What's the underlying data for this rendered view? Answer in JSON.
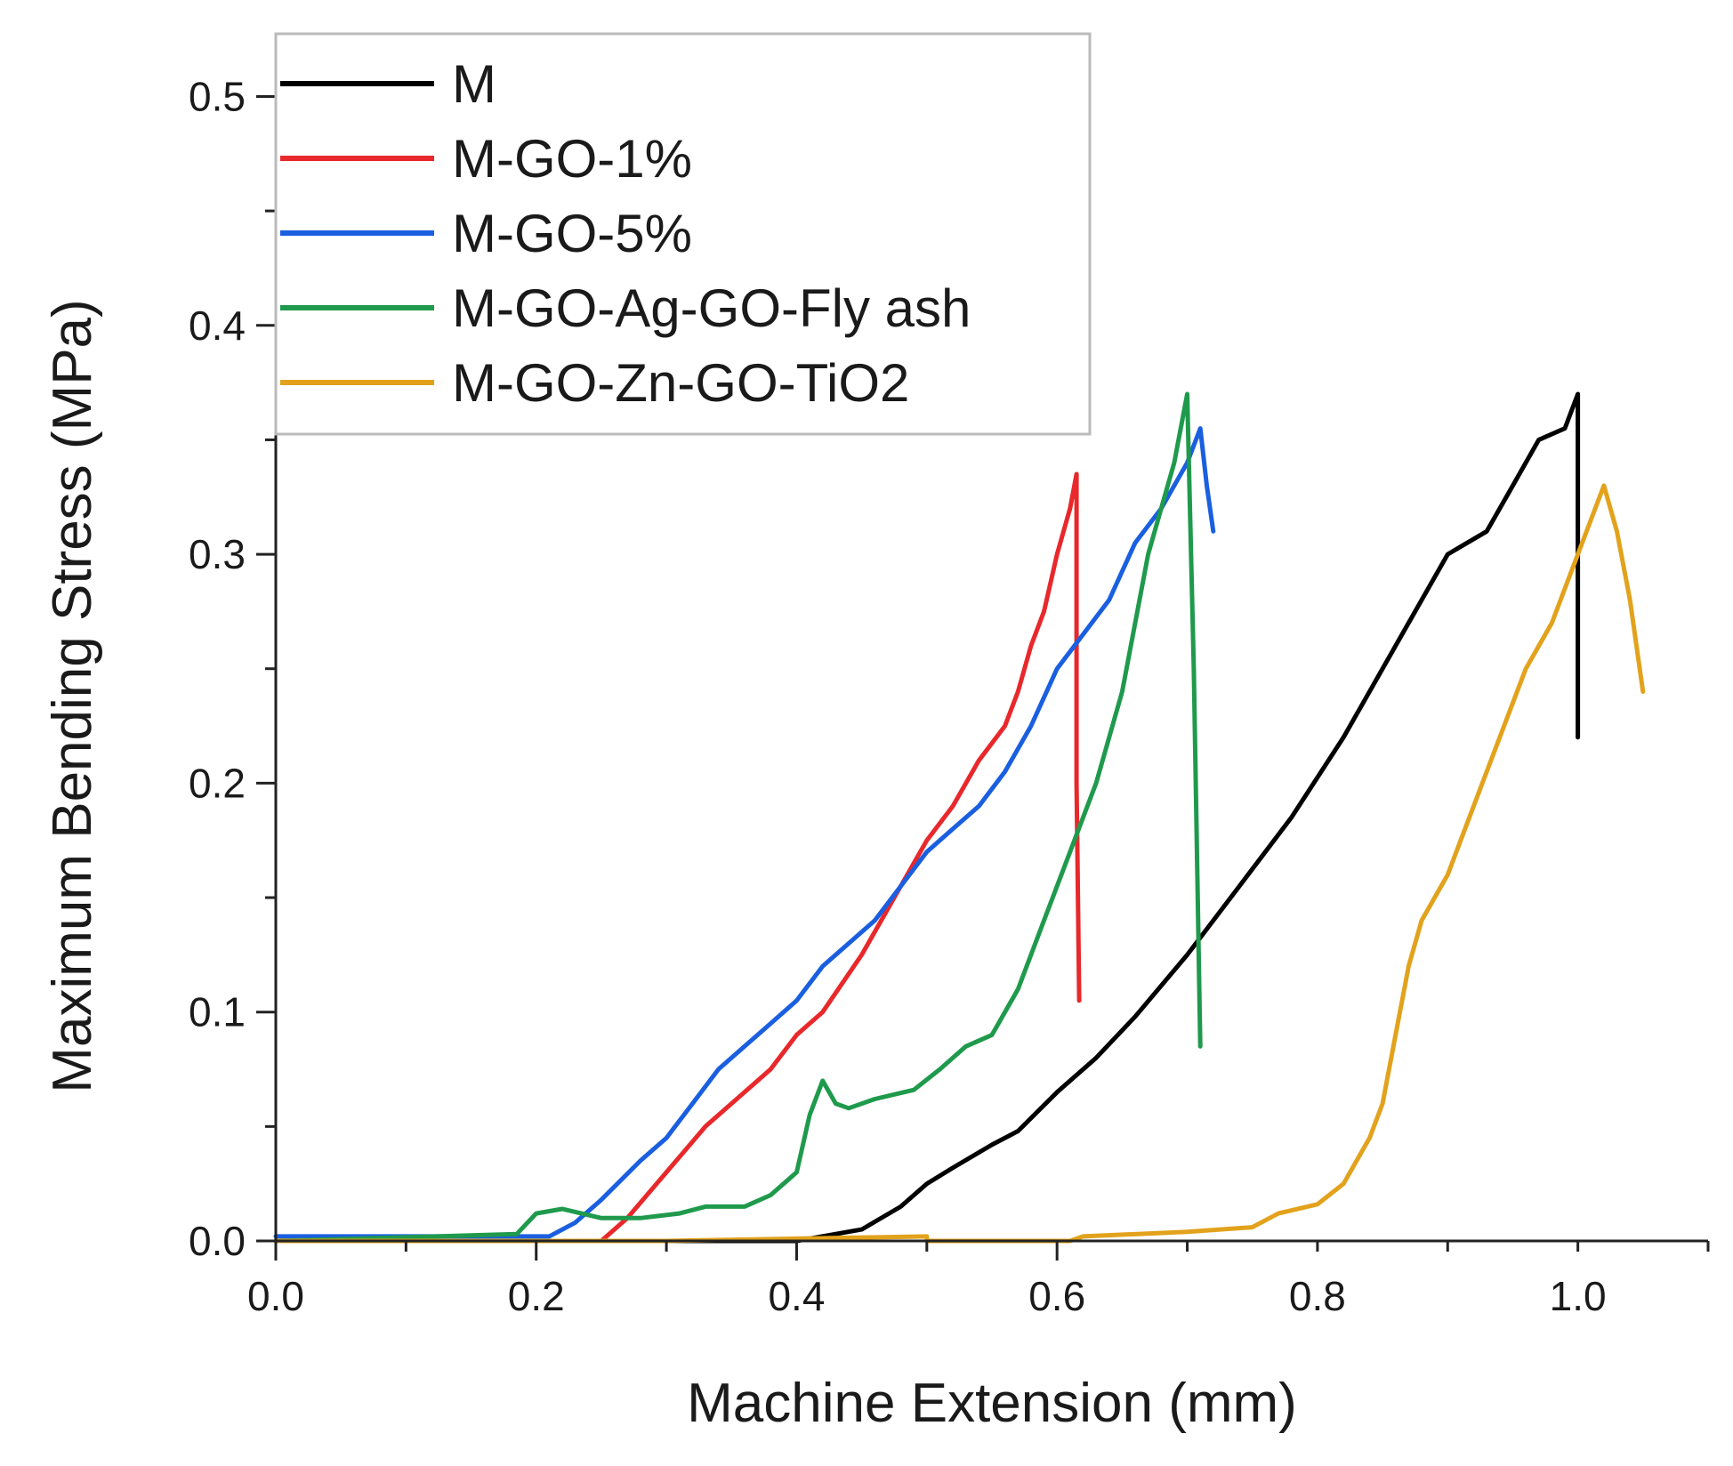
{
  "chart_data": {
    "type": "line",
    "title": "",
    "xlabel": "Machine Extension (mm)",
    "ylabel": "Maximum Bending Stress (MPa)",
    "xlim": [
      0.0,
      1.1
    ],
    "ylim": [
      0.0,
      0.52
    ],
    "x_ticks": [
      0.0,
      0.2,
      0.4,
      0.6,
      0.8,
      1.0
    ],
    "y_ticks": [
      0.0,
      0.1,
      0.2,
      0.3,
      0.4,
      0.5
    ],
    "x_tick_labels": [
      "0.0",
      "0.2",
      "0.4",
      "0.6",
      "0.8",
      "1.0"
    ],
    "y_tick_labels": [
      "0.0",
      "0.1",
      "0.2",
      "0.3",
      "0.4",
      "0.5"
    ],
    "legend_position": "top-left",
    "series": [
      {
        "name": "M",
        "color": "#000000",
        "x": [
          0.0,
          0.4,
          0.45,
          0.48,
          0.5,
          0.52,
          0.55,
          0.57,
          0.6,
          0.63,
          0.66,
          0.7,
          0.74,
          0.78,
          0.82,
          0.86,
          0.9,
          0.93,
          0.95,
          0.97,
          0.99,
          1.0,
          1.0,
          1.0
        ],
        "y": [
          0.0,
          0.0,
          0.005,
          0.015,
          0.025,
          0.032,
          0.042,
          0.048,
          0.065,
          0.08,
          0.098,
          0.125,
          0.155,
          0.185,
          0.22,
          0.26,
          0.3,
          0.31,
          0.33,
          0.35,
          0.355,
          0.37,
          0.3,
          0.22
        ]
      },
      {
        "name": "M-GO-1%",
        "color": "#e8282b",
        "x": [
          0.25,
          0.27,
          0.3,
          0.33,
          0.36,
          0.38,
          0.4,
          0.42,
          0.45,
          0.48,
          0.5,
          0.52,
          0.54,
          0.56,
          0.57,
          0.58,
          0.59,
          0.6,
          0.61,
          0.615,
          0.615,
          0.617
        ],
        "y": [
          0.0,
          0.01,
          0.03,
          0.05,
          0.065,
          0.075,
          0.09,
          0.1,
          0.125,
          0.155,
          0.175,
          0.19,
          0.21,
          0.225,
          0.24,
          0.26,
          0.275,
          0.3,
          0.32,
          0.335,
          0.2,
          0.105
        ]
      },
      {
        "name": "M-GO-5%",
        "color": "#1a5fe0",
        "x": [
          0.0,
          0.21,
          0.23,
          0.25,
          0.28,
          0.3,
          0.32,
          0.34,
          0.36,
          0.38,
          0.4,
          0.42,
          0.44,
          0.46,
          0.48,
          0.5,
          0.52,
          0.54,
          0.56,
          0.58,
          0.6,
          0.62,
          0.64,
          0.66,
          0.68,
          0.7,
          0.71,
          0.715,
          0.72
        ],
        "y": [
          0.002,
          0.002,
          0.008,
          0.018,
          0.035,
          0.045,
          0.06,
          0.075,
          0.085,
          0.095,
          0.105,
          0.12,
          0.13,
          0.14,
          0.155,
          0.17,
          0.18,
          0.19,
          0.205,
          0.225,
          0.25,
          0.265,
          0.28,
          0.305,
          0.32,
          0.34,
          0.355,
          0.33,
          0.31
        ]
      },
      {
        "name": "M-GO-Ag-GO-Fly ash",
        "color": "#1f9a4c",
        "x": [
          0.0,
          0.185,
          0.2,
          0.22,
          0.25,
          0.28,
          0.31,
          0.33,
          0.36,
          0.38,
          0.4,
          0.41,
          0.42,
          0.43,
          0.44,
          0.46,
          0.49,
          0.51,
          0.53,
          0.55,
          0.57,
          0.59,
          0.61,
          0.63,
          0.65,
          0.67,
          0.69,
          0.7,
          0.705,
          0.71
        ],
        "y": [
          0.0,
          0.003,
          0.012,
          0.014,
          0.01,
          0.01,
          0.012,
          0.015,
          0.015,
          0.02,
          0.03,
          0.055,
          0.07,
          0.06,
          0.058,
          0.062,
          0.066,
          0.075,
          0.085,
          0.09,
          0.11,
          0.14,
          0.17,
          0.2,
          0.24,
          0.3,
          0.34,
          0.37,
          0.25,
          0.085
        ]
      },
      {
        "name": "M-GO-Zn-GO-TiO2",
        "color": "#e2a21c",
        "x": [
          0.0,
          0.1,
          0.3,
          0.4,
          0.5,
          0.5,
          0.61,
          0.62,
          0.7,
          0.75,
          0.77,
          0.8,
          0.82,
          0.84,
          0.85,
          0.86,
          0.87,
          0.88,
          0.9,
          0.92,
          0.94,
          0.96,
          0.98,
          1.0,
          1.02,
          1.03,
          1.04,
          1.05
        ],
        "y": [
          0.0,
          0.0,
          0.0,
          0.001,
          0.002,
          0.0,
          0.0,
          0.002,
          0.004,
          0.006,
          0.012,
          0.016,
          0.025,
          0.045,
          0.06,
          0.09,
          0.12,
          0.14,
          0.16,
          0.19,
          0.22,
          0.25,
          0.27,
          0.3,
          0.33,
          0.31,
          0.28,
          0.24
        ]
      }
    ]
  }
}
